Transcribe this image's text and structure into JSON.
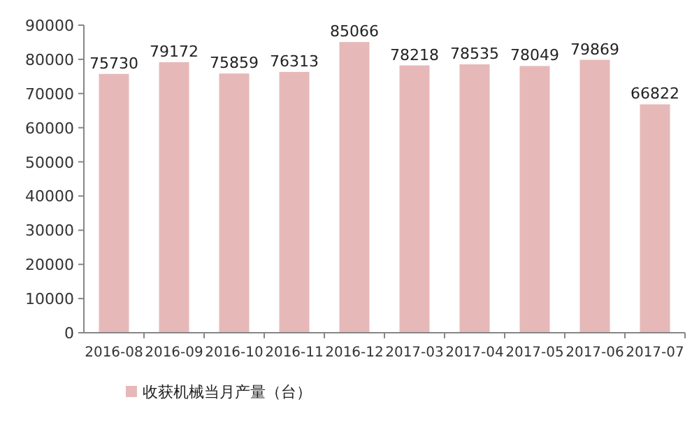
{
  "chart_data": {
    "type": "bar",
    "categories": [
      "2016-08",
      "2016-09",
      "2016-10",
      "2016-11",
      "2016-12",
      "2017-03",
      "2017-04",
      "2017-05",
      "2017-06",
      "2017-07"
    ],
    "series": [
      {
        "name": "收获机械当月产量（台）",
        "color": "#e6b9b8",
        "values": [
          75730,
          79172,
          75859,
          76313,
          85066,
          78218,
          78535,
          78049,
          79869,
          66822
        ]
      }
    ],
    "ylim": [
      0,
      90000
    ],
    "yticks": [
      0,
      10000,
      20000,
      30000,
      40000,
      50000,
      60000,
      70000,
      80000,
      90000
    ],
    "data_labels": true,
    "legend": "bottom",
    "grid": false
  }
}
